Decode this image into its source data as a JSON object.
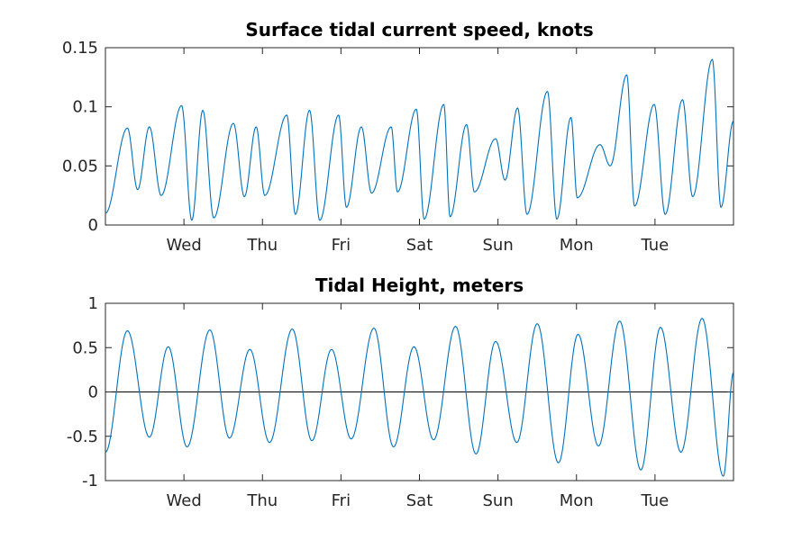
{
  "chart_data": [
    {
      "type": "line",
      "title": "Surface tidal current speed, knots",
      "x_unit": "days",
      "xlim": [
        0,
        8
      ],
      "ylim": [
        0,
        0.15
      ],
      "yticks": [
        0,
        0.05,
        0.1,
        0.15
      ],
      "ytick_labels": [
        "0",
        "0.05",
        "0.1",
        "0.15"
      ],
      "xticks": [
        1,
        2,
        3,
        4,
        5,
        6,
        7
      ],
      "xtick_labels": [
        "Wed",
        "Thu",
        "Fri",
        "Sat",
        "Sun",
        "Mon",
        "Tue"
      ],
      "series_color": "#0072BD",
      "series": [
        {
          "x": [
            0,
            0.28,
            0.41,
            0.56,
            0.71,
            0.97,
            1.1,
            1.24,
            1.38,
            1.63,
            1.77,
            1.92,
            2.03,
            2.31,
            2.42,
            2.6,
            2.73,
            2.97,
            3.07,
            3.26,
            3.39,
            3.64,
            3.72,
            3.96,
            4.06,
            4.31,
            4.39,
            4.6,
            4.7,
            4.97,
            5.09,
            5.25,
            5.37,
            5.63,
            5.75,
            5.93,
            6.01,
            6.3,
            6.43,
            6.64,
            6.74,
            6.99,
            7.13,
            7.35,
            7.48,
            7.73,
            7.84,
            8.0
          ],
          "values": [
            0.01,
            0.082,
            0.03,
            0.083,
            0.025,
            0.101,
            0.004,
            0.097,
            0.006,
            0.086,
            0.024,
            0.083,
            0.025,
            0.093,
            0.009,
            0.097,
            0.004,
            0.093,
            0.015,
            0.083,
            0.027,
            0.083,
            0.028,
            0.098,
            0.005,
            0.102,
            0.007,
            0.085,
            0.028,
            0.073,
            0.038,
            0.099,
            0.009,
            0.113,
            0.005,
            0.091,
            0.023,
            0.068,
            0.05,
            0.127,
            0.016,
            0.102,
            0.009,
            0.106,
            0.024,
            0.14,
            0.015,
            0.088
          ]
        }
      ]
    },
    {
      "type": "line",
      "title": "Tidal Height, meters",
      "x_unit": "days",
      "xlim": [
        0,
        8
      ],
      "ylim": [
        -1,
        1
      ],
      "yticks": [
        -1,
        -0.5,
        0,
        0.5,
        1
      ],
      "ytick_labels": [
        "-1",
        "-0.5",
        "0",
        "0.5",
        "1"
      ],
      "xticks": [
        1,
        2,
        3,
        4,
        5,
        6,
        7
      ],
      "xtick_labels": [
        "Wed",
        "Thu",
        "Fri",
        "Sat",
        "Sun",
        "Mon",
        "Tue"
      ],
      "zero_line": true,
      "series_color": "#0072BD",
      "series": [
        {
          "x": [
            0,
            0.28,
            0.56,
            0.8,
            1.04,
            1.33,
            1.58,
            1.84,
            2.09,
            2.38,
            2.63,
            2.88,
            3.13,
            3.42,
            3.67,
            3.93,
            4.18,
            4.46,
            4.72,
            4.97,
            5.24,
            5.5,
            5.77,
            6.02,
            6.28,
            6.55,
            6.82,
            7.07,
            7.33,
            7.6,
            7.87,
            8.0
          ],
          "values": [
            -0.68,
            0.69,
            -0.51,
            0.51,
            -0.62,
            0.7,
            -0.52,
            0.48,
            -0.57,
            0.71,
            -0.55,
            0.48,
            -0.53,
            0.72,
            -0.62,
            0.51,
            -0.54,
            0.74,
            -0.7,
            0.57,
            -0.57,
            0.77,
            -0.8,
            0.65,
            -0.61,
            0.8,
            -0.88,
            0.73,
            -0.68,
            0.83,
            -0.95,
            0.22
          ]
        }
      ]
    }
  ]
}
